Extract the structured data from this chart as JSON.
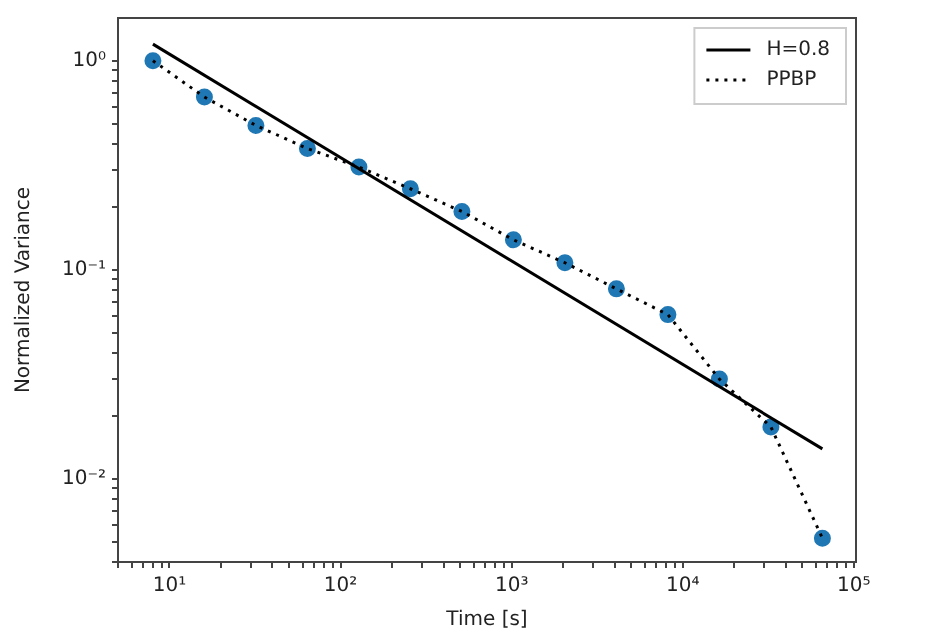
{
  "chart_data": {
    "type": "line",
    "xlabel": "Time [s]",
    "ylabel": "Normalized Variance",
    "log": "xy",
    "legend": "top right",
    "xlim": [
      5,
      103000
    ],
    "ylim": [
      0.004,
      1.6
    ],
    "xticks": [
      {
        "value": 5,
        "label": null
      },
      {
        "value": 6,
        "label": null
      },
      {
        "value": 7,
        "label": null
      },
      {
        "value": 8,
        "label": null
      },
      {
        "value": 9,
        "label": null
      },
      {
        "value": 10,
        "label": "10¹"
      },
      {
        "value": 20,
        "label": null
      },
      {
        "value": 30,
        "label": null
      },
      {
        "value": 40,
        "label": null
      },
      {
        "value": 50,
        "label": null
      },
      {
        "value": 60,
        "label": null
      },
      {
        "value": 70,
        "label": null
      },
      {
        "value": 80,
        "label": null
      },
      {
        "value": 90,
        "label": null
      },
      {
        "value": 100,
        "label": "10²"
      },
      {
        "value": 200,
        "label": null
      },
      {
        "value": 300,
        "label": null
      },
      {
        "value": 400,
        "label": null
      },
      {
        "value": 500,
        "label": null
      },
      {
        "value": 600,
        "label": null
      },
      {
        "value": 700,
        "label": null
      },
      {
        "value": 800,
        "label": null
      },
      {
        "value": 900,
        "label": null
      },
      {
        "value": 1000,
        "label": "10³"
      },
      {
        "value": 2000,
        "label": null
      },
      {
        "value": 3000,
        "label": null
      },
      {
        "value": 4000,
        "label": null
      },
      {
        "value": 5000,
        "label": null
      },
      {
        "value": 6000,
        "label": null
      },
      {
        "value": 7000,
        "label": null
      },
      {
        "value": 8000,
        "label": null
      },
      {
        "value": 9000,
        "label": null
      },
      {
        "value": 10000,
        "label": "10⁴"
      },
      {
        "value": 20000,
        "label": null
      },
      {
        "value": 30000,
        "label": null
      },
      {
        "value": 40000,
        "label": null
      },
      {
        "value": 50000,
        "label": null
      },
      {
        "value": 60000,
        "label": null
      },
      {
        "value": 70000,
        "label": null
      },
      {
        "value": 80000,
        "label": null
      },
      {
        "value": 90000,
        "label": null
      },
      {
        "value": 100000,
        "label": "10⁵"
      }
    ],
    "yticks": [
      {
        "value": 0.004,
        "label": null
      },
      {
        "value": 0.005,
        "label": null
      },
      {
        "value": 0.006,
        "label": null
      },
      {
        "value": 0.007,
        "label": null
      },
      {
        "value": 0.008,
        "label": null
      },
      {
        "value": 0.009,
        "label": null
      },
      {
        "value": 0.01,
        "label": "10⁻²"
      },
      {
        "value": 0.02,
        "label": null
      },
      {
        "value": 0.03,
        "label": null
      },
      {
        "value": 0.04,
        "label": null
      },
      {
        "value": 0.05,
        "label": null
      },
      {
        "value": 0.06,
        "label": null
      },
      {
        "value": 0.07,
        "label": null
      },
      {
        "value": 0.08,
        "label": null
      },
      {
        "value": 0.09,
        "label": null
      },
      {
        "value": 0.1,
        "label": "10⁻¹"
      },
      {
        "value": 0.2,
        "label": null
      },
      {
        "value": 0.3,
        "label": null
      },
      {
        "value": 0.4,
        "label": null
      },
      {
        "value": 0.5,
        "label": null
      },
      {
        "value": 0.6,
        "label": null
      },
      {
        "value": 0.7,
        "label": null
      },
      {
        "value": 0.8,
        "label": null
      },
      {
        "value": 0.9,
        "label": null
      },
      {
        "value": 1,
        "label": "10⁰"
      }
    ],
    "series": [
      {
        "name": "H=0.8",
        "line_style": "solid",
        "marker": "none",
        "color": "#000000",
        "x": [
          8,
          65536
        ],
        "values": [
          1.2,
          0.0139
        ]
      },
      {
        "name": "PPBP",
        "line_style": "dotted",
        "marker": "none",
        "color": "#000000",
        "x": [
          8,
          16,
          32,
          64,
          128,
          256,
          512,
          1024,
          2048,
          4096,
          8192,
          16384,
          32768,
          65536
        ],
        "values": [
          1.0,
          0.67,
          0.49,
          0.38,
          0.31,
          0.244,
          0.19,
          0.139,
          0.108,
          0.081,
          0.061,
          0.03,
          0.0177,
          0.0052
        ]
      },
      {
        "type": "scatter",
        "marker": "circle",
        "color": "#1f77b4",
        "x": [
          8,
          16,
          32,
          64,
          128,
          256,
          512,
          1024,
          2048,
          4096,
          8192,
          16384,
          32768,
          65536
        ],
        "values": [
          1.0,
          0.67,
          0.49,
          0.38,
          0.31,
          0.244,
          0.19,
          0.139,
          0.108,
          0.081,
          0.061,
          0.03,
          0.0177,
          0.0052
        ]
      }
    ]
  }
}
